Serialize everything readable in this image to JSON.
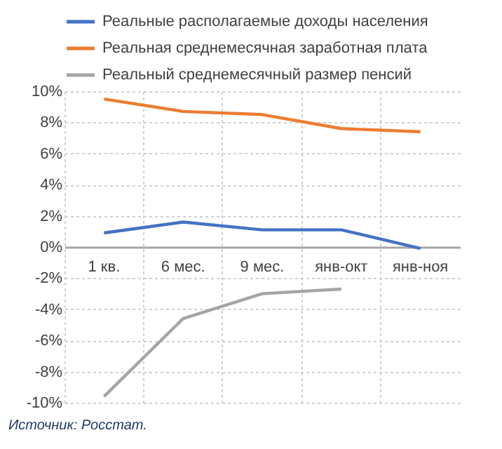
{
  "chart_data": {
    "type": "line",
    "categories": [
      "1 кв.",
      "6 мес.",
      "9 мес.",
      "янв-окт",
      "янв-ноя"
    ],
    "series": [
      {
        "name": "Реальные располагаемые доходы населения",
        "color": "#4472c4",
        "values": [
          0.9,
          1.6,
          1.1,
          1.1,
          -0.1
        ]
      },
      {
        "name": "Реальная среднемесячная заработная плата",
        "color": "#ed7d31",
        "values": [
          9.5,
          8.7,
          8.5,
          7.6,
          7.4
        ]
      },
      {
        "name": "Реальный среднемесячный размер пенсий",
        "color": "#a5a5a5",
        "values": [
          -9.6,
          -4.6,
          -3.0,
          -2.7,
          null
        ]
      }
    ],
    "ylim": [
      -10,
      10
    ],
    "yticks": [
      {
        "value": -10,
        "label": "-10%"
      },
      {
        "value": -8,
        "label": "-8%"
      },
      {
        "value": -6,
        "label": "-6%"
      },
      {
        "value": -4,
        "label": "-4%"
      },
      {
        "value": -2,
        "label": "-2%"
      },
      {
        "value": 0,
        "label": "0%"
      },
      {
        "value": 2,
        "label": "2%"
      },
      {
        "value": 4,
        "label": "4%"
      },
      {
        "value": 6,
        "label": "6%"
      },
      {
        "value": 8,
        "label": "8%"
      },
      {
        "value": 10,
        "label": "10%"
      }
    ],
    "grid": true,
    "legend": "top",
    "marker": "none",
    "line_style": "solid",
    "annotations": [
      "Источник: Росстат."
    ]
  }
}
